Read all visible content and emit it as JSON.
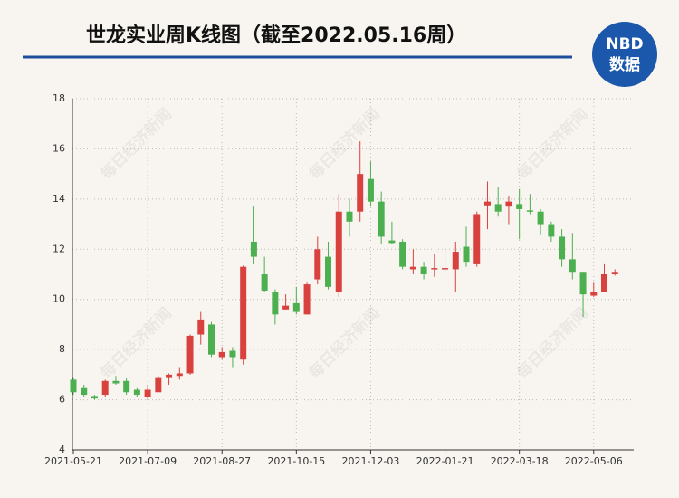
{
  "chart_data": {
    "type": "candlestick",
    "title": "世龙实业周K线图（截至2022.05.16周）",
    "logo": {
      "top": "NBD",
      "bottom": "数据"
    },
    "watermark": "每日经济新闻",
    "categories": [
      "2021-05-21",
      null,
      null,
      null,
      null,
      null,
      null,
      "2021-07-09",
      null,
      null,
      null,
      null,
      null,
      null,
      "2021-08-27",
      null,
      null,
      null,
      null,
      null,
      null,
      "2021-10-15",
      null,
      null,
      null,
      null,
      null,
      null,
      "2021-12-03",
      null,
      null,
      null,
      null,
      null,
      null,
      "2022-01-21",
      null,
      null,
      null,
      null,
      null,
      null,
      "2022-03-18",
      null,
      null,
      null,
      null,
      null,
      null,
      "2022-05-06",
      null,
      null
    ],
    "open": [
      6.8,
      6.5,
      6.15,
      6.2,
      6.75,
      6.75,
      6.4,
      6.1,
      6.3,
      6.9,
      6.95,
      7.05,
      8.6,
      9.0,
      7.7,
      7.95,
      7.6,
      12.3,
      11.0,
      10.3,
      9.6,
      9.85,
      9.4,
      10.8,
      11.7,
      10.3,
      13.5,
      13.5,
      14.8,
      13.9,
      12.35,
      12.3,
      11.2,
      11.3,
      11.2,
      11.2,
      11.2,
      12.1,
      11.4,
      13.75,
      13.8,
      13.7,
      13.8,
      13.55,
      13.5,
      13.0,
      12.5,
      11.6,
      11.1,
      10.15,
      10.3,
      11.0
    ],
    "close": [
      6.3,
      6.2,
      6.05,
      6.75,
      6.65,
      6.3,
      6.2,
      6.4,
      6.9,
      7.0,
      7.05,
      8.55,
      9.2,
      7.8,
      7.9,
      7.7,
      11.3,
      11.7,
      10.35,
      9.4,
      9.75,
      9.5,
      10.6,
      12.0,
      10.5,
      13.5,
      13.1,
      15.0,
      13.9,
      12.5,
      12.25,
      11.3,
      11.3,
      11.0,
      11.25,
      11.25,
      11.9,
      11.5,
      13.4,
      13.9,
      13.5,
      13.9,
      13.6,
      13.5,
      13.0,
      12.5,
      11.6,
      11.1,
      10.2,
      10.3,
      11.0,
      11.1
    ],
    "high": [
      6.9,
      6.6,
      6.2,
      6.8,
      6.95,
      6.85,
      6.5,
      6.6,
      6.95,
      7.05,
      7.3,
      8.6,
      9.5,
      9.1,
      8.1,
      8.1,
      11.35,
      13.7,
      11.7,
      10.4,
      10.2,
      10.5,
      10.7,
      12.5,
      12.3,
      14.2,
      14.0,
      16.3,
      15.5,
      14.3,
      13.1,
      12.4,
      12.0,
      11.5,
      11.8,
      12.0,
      12.3,
      12.9,
      13.5,
      14.7,
      14.5,
      14.1,
      14.4,
      14.2,
      13.6,
      13.1,
      12.8,
      12.65,
      11.1,
      10.7,
      11.4,
      11.2
    ],
    "low": [
      6.2,
      6.1,
      6.0,
      6.1,
      6.6,
      6.2,
      6.1,
      6.0,
      6.3,
      6.6,
      6.8,
      7.0,
      8.2,
      7.7,
      7.6,
      7.3,
      7.4,
      11.4,
      10.3,
      9.0,
      9.6,
      9.4,
      9.4,
      10.6,
      10.4,
      10.1,
      12.5,
      13.1,
      13.7,
      12.2,
      12.2,
      11.2,
      11.0,
      10.8,
      10.9,
      11.0,
      10.3,
      11.3,
      11.3,
      12.8,
      13.3,
      13.0,
      12.4,
      13.4,
      12.6,
      12.3,
      11.3,
      10.8,
      9.3,
      10.1,
      10.3,
      10.95
    ],
    "up_color": "#d9413f",
    "down_color": "#4caf50",
    "ylim": [
      4,
      18
    ],
    "yticks": [
      4,
      6,
      8,
      10,
      12,
      14,
      16,
      18
    ],
    "grid": true
  }
}
